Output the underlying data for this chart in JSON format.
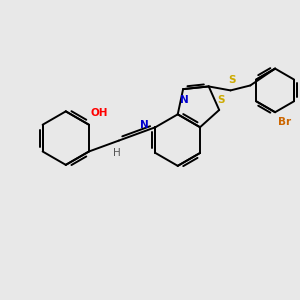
{
  "background_color": "#e8e8e8",
  "bond_color": "#000000",
  "atom_colors": {
    "O": "#ff0000",
    "N": "#0000cd",
    "S": "#ccaa00",
    "Br": "#cc6600",
    "C": "#000000",
    "H": "#555555"
  },
  "figsize": [
    3.0,
    3.0
  ],
  "dpi": 100,
  "lw": 1.4
}
